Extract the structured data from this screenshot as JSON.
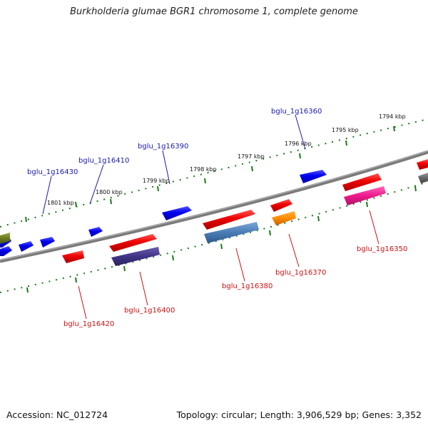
{
  "title": "Burkholderia glumae BGR1 chromosome 1, complete genome",
  "footer": {
    "accession": "Accession: NC_012724",
    "summary": "Topology: circular; Length: 3,906,529 bp; Genes: 3,352"
  },
  "colors": {
    "forward_label": "#1a1aaa",
    "reverse_label": "#cc1111",
    "tick": "#1a7a1a",
    "backbone": "#7a7a7a"
  },
  "scale_labels": [
    "1794 kbp",
    "1795 kbp",
    "1796 kbp",
    "1797 kbp",
    "1798 kbp",
    "1799 kbp",
    "1800 kbp",
    "1801 kbp"
  ],
  "gene_labels_forward": [
    "bglu_1g16360",
    "bglu_1g16390",
    "bglu_1g16410",
    "bglu_1g16430"
  ],
  "gene_labels_reverse": [
    "bglu_1g16350",
    "bglu_1g16370",
    "bglu_1g16380",
    "bglu_1g16400",
    "bglu_1g16420"
  ]
}
